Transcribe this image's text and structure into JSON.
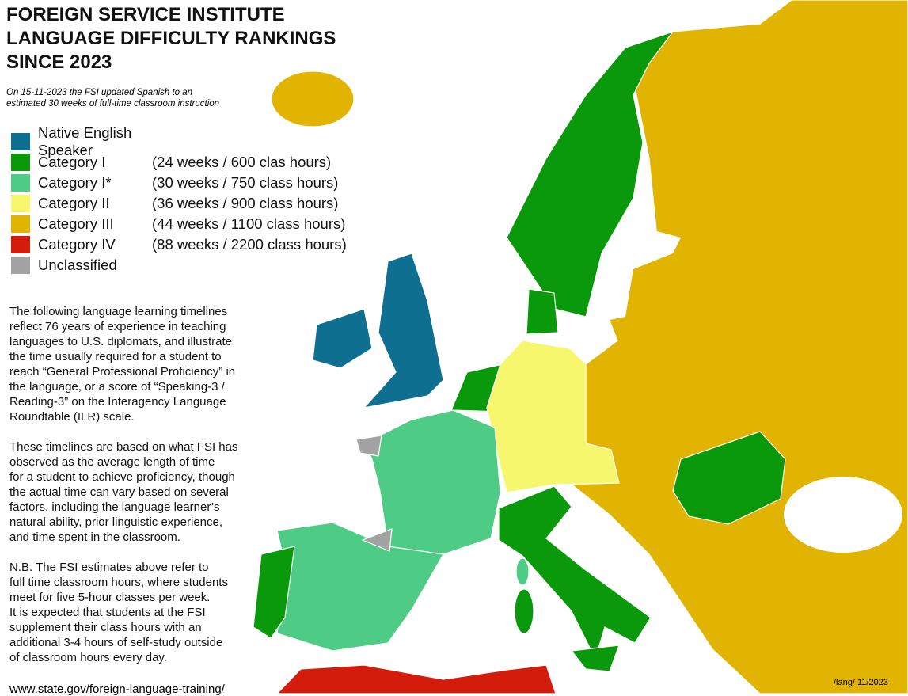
{
  "header": {
    "title_lines": [
      "FOREIGN SERVICE INSTITUTE",
      "LANGUAGE DIFFICULTY RANKINGS",
      "SINCE 2023"
    ],
    "note_lines": [
      "On 15-11-2023 the FSI updated Spanish to an",
      "estimated 30 weeks of full-time classroom instruction"
    ]
  },
  "legend": [
    {
      "label": "Native English Speaker",
      "color": "#0e6f91"
    },
    {
      "label": "Category I",
      "detail": "(24 weeks / 600 clas hours)",
      "color": "#0a990a"
    },
    {
      "label": "Category I*",
      "detail": "(30 weeks / 750 class hours)",
      "color": "#4ecb84"
    },
    {
      "label": "Category II",
      "detail": "(36 weeks / 900 class hours)",
      "color": "#f7f76e"
    },
    {
      "label": "Category III",
      "detail": "(44 weeks / 1100 class hours)",
      "color": "#e0b400"
    },
    {
      "label": "Category IV",
      "detail": "(88 weeks / 2200 class hours)",
      "color": "#d41c0c"
    },
    {
      "label": "Unclassified",
      "color": "#a3a3a3"
    }
  ],
  "paragraphs": [
    [
      "The following language learning timelines",
      "reflect 76 years of experience in teaching",
      "languages to U.S. diplomats, and illustrate",
      "the time usually required for a student to",
      "reach “General Professional Proficiency” in",
      "the language, or a score of “Speaking-3 /",
      "Reading-3” on the Interagency Language",
      "Roundtable (ILR) scale."
    ],
    [
      "These timelines are based on what FSI has",
      "observed as the average length of time",
      "for a student to achieve proficiency, though",
      "the actual time can vary based on several",
      "factors, including the language learner’s",
      "natural ability, prior linguistic experience,",
      "and time spent in the classroom."
    ],
    [
      "N.B. The FSI estimates above refer to",
      "full time classroom hours, where students",
      "meet for five 5-hour classes per week.",
      "It is expected that students at the FSI",
      "supplement their class hours with an",
      "additional 3-4 hours of self-study outside",
      "of classroom hours every day."
    ]
  ],
  "url": "www.state.gov/foreign-language-training/",
  "credit": "/lang/ 11/2023"
}
